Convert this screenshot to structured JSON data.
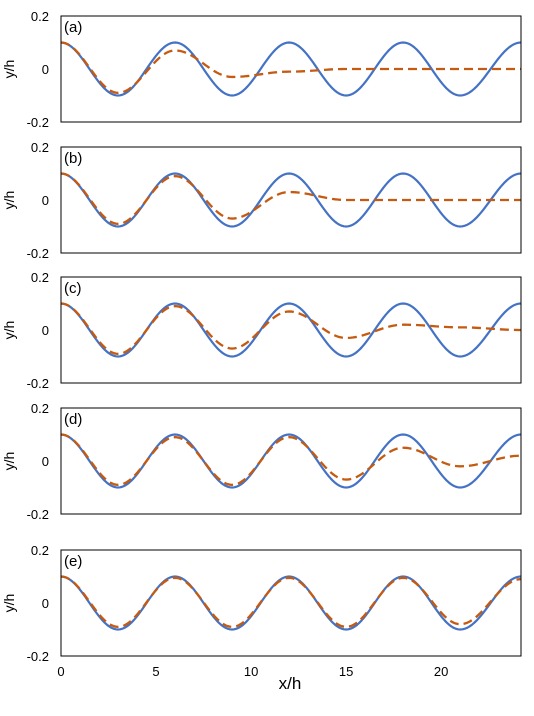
{
  "x_axis": {
    "label": "x/h",
    "range": [
      0,
      24.2
    ],
    "ticks": [
      0,
      5,
      10,
      15,
      20
    ],
    "tick_labels": [
      "0",
      "5",
      "10",
      "15",
      "20"
    ]
  },
  "colors": {
    "reference": "#4472C4",
    "response": "#C55A11",
    "frame": "#000000"
  },
  "chart_data": [
    {
      "type": "line",
      "panel_label": "(a)",
      "ylabel": "y/h",
      "ylim": [
        -0.2,
        0.2
      ],
      "y_ticks": [
        0.2,
        0,
        -0.2
      ],
      "y_tick_labels": [
        "0.2",
        "0",
        "-0.2"
      ],
      "series": [
        {
          "style": "solid",
          "color": "#4472C4",
          "x": [
            0,
            3,
            6,
            9,
            12,
            15,
            18,
            21,
            24.2
          ],
          "y": [
            0.1,
            -0.1,
            0.1,
            -0.1,
            0.1,
            -0.1,
            0.1,
            -0.1,
            0.1
          ]
        },
        {
          "style": "dashed",
          "color": "#C55A11",
          "x": [
            0,
            3,
            6,
            9,
            12,
            15,
            18,
            21,
            24.2
          ],
          "y": [
            0.1,
            -0.09,
            0.07,
            -0.03,
            -0.01,
            0,
            0,
            0,
            0
          ]
        }
      ]
    },
    {
      "type": "line",
      "panel_label": "(b)",
      "ylabel": "y/h",
      "ylim": [
        -0.2,
        0.2
      ],
      "y_ticks": [
        0.2,
        0,
        -0.2
      ],
      "y_tick_labels": [
        "0.2",
        "0",
        "-0.2"
      ],
      "series": [
        {
          "style": "solid",
          "color": "#4472C4",
          "x": [
            0,
            3,
            6,
            9,
            12,
            15,
            18,
            21,
            24.2
          ],
          "y": [
            0.1,
            -0.1,
            0.1,
            -0.1,
            0.1,
            -0.1,
            0.1,
            -0.1,
            0.1
          ]
        },
        {
          "style": "dashed",
          "color": "#C55A11",
          "x": [
            0,
            3,
            6,
            9,
            12,
            15,
            18,
            21,
            24.2
          ],
          "y": [
            0.1,
            -0.09,
            0.09,
            -0.07,
            0.03,
            0,
            0,
            0,
            0
          ]
        }
      ]
    },
    {
      "type": "line",
      "panel_label": "(c)",
      "ylabel": "y/h",
      "ylim": [
        -0.2,
        0.2
      ],
      "y_ticks": [
        0.2,
        0,
        -0.2
      ],
      "y_tick_labels": [
        "0.2",
        "0",
        "-0.2"
      ],
      "series": [
        {
          "style": "solid",
          "color": "#4472C4",
          "x": [
            0,
            3,
            6,
            9,
            12,
            15,
            18,
            21,
            24.2
          ],
          "y": [
            0.1,
            -0.1,
            0.1,
            -0.1,
            0.1,
            -0.1,
            0.1,
            -0.1,
            0.1
          ]
        },
        {
          "style": "dashed",
          "color": "#C55A11",
          "x": [
            0,
            3,
            6,
            9,
            12,
            15,
            18,
            21,
            24.2
          ],
          "y": [
            0.1,
            -0.09,
            0.09,
            -0.07,
            0.07,
            -0.03,
            0.02,
            0.01,
            0
          ]
        }
      ]
    },
    {
      "type": "line",
      "panel_label": "(d)",
      "ylabel": "y/h",
      "ylim": [
        -0.2,
        0.2
      ],
      "y_ticks": [
        0.2,
        0,
        -0.2
      ],
      "y_tick_labels": [
        "0.2",
        "0",
        "-0.2"
      ],
      "series": [
        {
          "style": "solid",
          "color": "#4472C4",
          "x": [
            0,
            3,
            6,
            9,
            12,
            15,
            18,
            21,
            24.2
          ],
          "y": [
            0.1,
            -0.1,
            0.1,
            -0.1,
            0.1,
            -0.1,
            0.1,
            -0.1,
            0.1
          ]
        },
        {
          "style": "dashed",
          "color": "#C55A11",
          "x": [
            0,
            3,
            6,
            9,
            12,
            15,
            18,
            21,
            24.2
          ],
          "y": [
            0.1,
            -0.09,
            0.09,
            -0.09,
            0.09,
            -0.07,
            0.05,
            -0.02,
            0.02
          ]
        }
      ]
    },
    {
      "type": "line",
      "panel_label": "(e)",
      "ylabel": "y/h",
      "ylim": [
        -0.2,
        0.2
      ],
      "y_ticks": [
        0.2,
        0,
        -0.2
      ],
      "y_tick_labels": [
        "0.2",
        "0",
        "-0.2"
      ],
      "series": [
        {
          "style": "solid",
          "color": "#4472C4",
          "x": [
            0,
            3,
            6,
            9,
            12,
            15,
            18,
            21,
            24.2
          ],
          "y": [
            0.1,
            -0.1,
            0.1,
            -0.1,
            0.1,
            -0.1,
            0.1,
            -0.1,
            0.1
          ]
        },
        {
          "style": "dashed",
          "color": "#C55A11",
          "x": [
            0,
            3,
            6,
            9,
            12,
            15,
            18,
            21,
            24.2
          ],
          "y": [
            0.1,
            -0.09,
            0.095,
            -0.09,
            0.095,
            -0.09,
            0.095,
            -0.08,
            0.09
          ]
        }
      ]
    }
  ]
}
